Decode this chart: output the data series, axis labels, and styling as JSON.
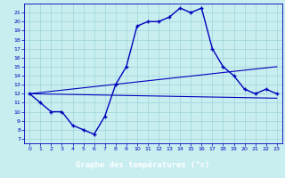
{
  "title": "Graphe des températures (°c)",
  "bg_color": "#c8eef0",
  "grid_color": "#9ed4d8",
  "line_color": "#0000bb",
  "label_bg": "#2060b0",
  "label_fg": "#ffffff",
  "hours_actual": [
    0,
    1,
    2,
    3,
    4,
    5,
    6,
    7,
    8,
    9,
    10,
    11,
    12,
    13,
    14,
    15,
    16,
    17,
    18,
    19,
    20,
    21,
    22,
    23
  ],
  "temp_actual": [
    12,
    11,
    10,
    10,
    8.5,
    8,
    7.5,
    9.5,
    13,
    15,
    19.5,
    20,
    20,
    20.5,
    21.5,
    21,
    21.5,
    17,
    15,
    14,
    12.5,
    12,
    12.5,
    12
  ],
  "hours_line1": [
    0,
    23
  ],
  "temp_line1": [
    12,
    11.5
  ],
  "hours_line2": [
    0,
    23
  ],
  "temp_line2": [
    12,
    15
  ],
  "ylim": [
    6.5,
    22
  ],
  "yticks": [
    7,
    8,
    9,
    10,
    11,
    12,
    13,
    14,
    15,
    16,
    17,
    18,
    19,
    20,
    21
  ],
  "xlim": [
    -0.5,
    23.5
  ],
  "xticks": [
    0,
    1,
    2,
    3,
    4,
    5,
    6,
    7,
    8,
    9,
    10,
    11,
    12,
    13,
    14,
    15,
    16,
    17,
    18,
    19,
    20,
    21,
    22,
    23
  ]
}
